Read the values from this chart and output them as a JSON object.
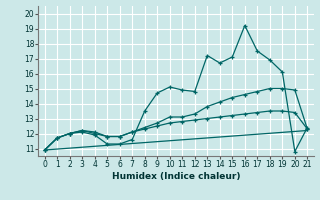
{
  "xlabel": "Humidex (Indice chaleur)",
  "bg_color": "#cce8e8",
  "grid_color": "#ffffff",
  "line_color": "#006666",
  "xlim": [
    -0.5,
    21.5
  ],
  "ylim": [
    10.5,
    20.5
  ],
  "xticks": [
    0,
    1,
    2,
    3,
    4,
    5,
    6,
    7,
    8,
    9,
    10,
    11,
    12,
    13,
    14,
    15,
    16,
    17,
    18,
    19,
    20,
    21
  ],
  "yticks": [
    11,
    12,
    13,
    14,
    15,
    16,
    17,
    18,
    19,
    20
  ],
  "line1_x": [
    0,
    1,
    2,
    3,
    4,
    5,
    6,
    7,
    8,
    9,
    10,
    11,
    12,
    13,
    14,
    15,
    16,
    17,
    18,
    19,
    20,
    21
  ],
  "line1_y": [
    10.9,
    11.7,
    12.0,
    12.1,
    11.9,
    11.3,
    11.3,
    11.6,
    13.5,
    14.7,
    15.1,
    14.9,
    14.8,
    17.2,
    16.7,
    17.1,
    19.2,
    17.5,
    16.9,
    16.1,
    10.8,
    12.4
  ],
  "line2_x": [
    0,
    1,
    2,
    3,
    4,
    5,
    6,
    7,
    8,
    9,
    10,
    11,
    12,
    13,
    14,
    15,
    16,
    17,
    18,
    19,
    20,
    21
  ],
  "line2_y": [
    10.9,
    11.7,
    12.0,
    12.2,
    12.1,
    11.8,
    11.8,
    12.1,
    12.4,
    12.7,
    13.1,
    13.1,
    13.3,
    13.8,
    14.1,
    14.4,
    14.6,
    14.8,
    15.0,
    15.0,
    14.9,
    12.3
  ],
  "line3_x": [
    0,
    1,
    2,
    3,
    4,
    5,
    6,
    7,
    8,
    9,
    10,
    11,
    12,
    13,
    14,
    15,
    16,
    17,
    18,
    19,
    20,
    21
  ],
  "line3_y": [
    10.9,
    11.7,
    12.0,
    12.2,
    12.0,
    11.8,
    11.8,
    12.1,
    12.3,
    12.5,
    12.7,
    12.8,
    12.9,
    13.0,
    13.1,
    13.2,
    13.3,
    13.4,
    13.5,
    13.5,
    13.4,
    12.3
  ],
  "line4_x": [
    0,
    21
  ],
  "line4_y": [
    10.9,
    12.2
  ]
}
